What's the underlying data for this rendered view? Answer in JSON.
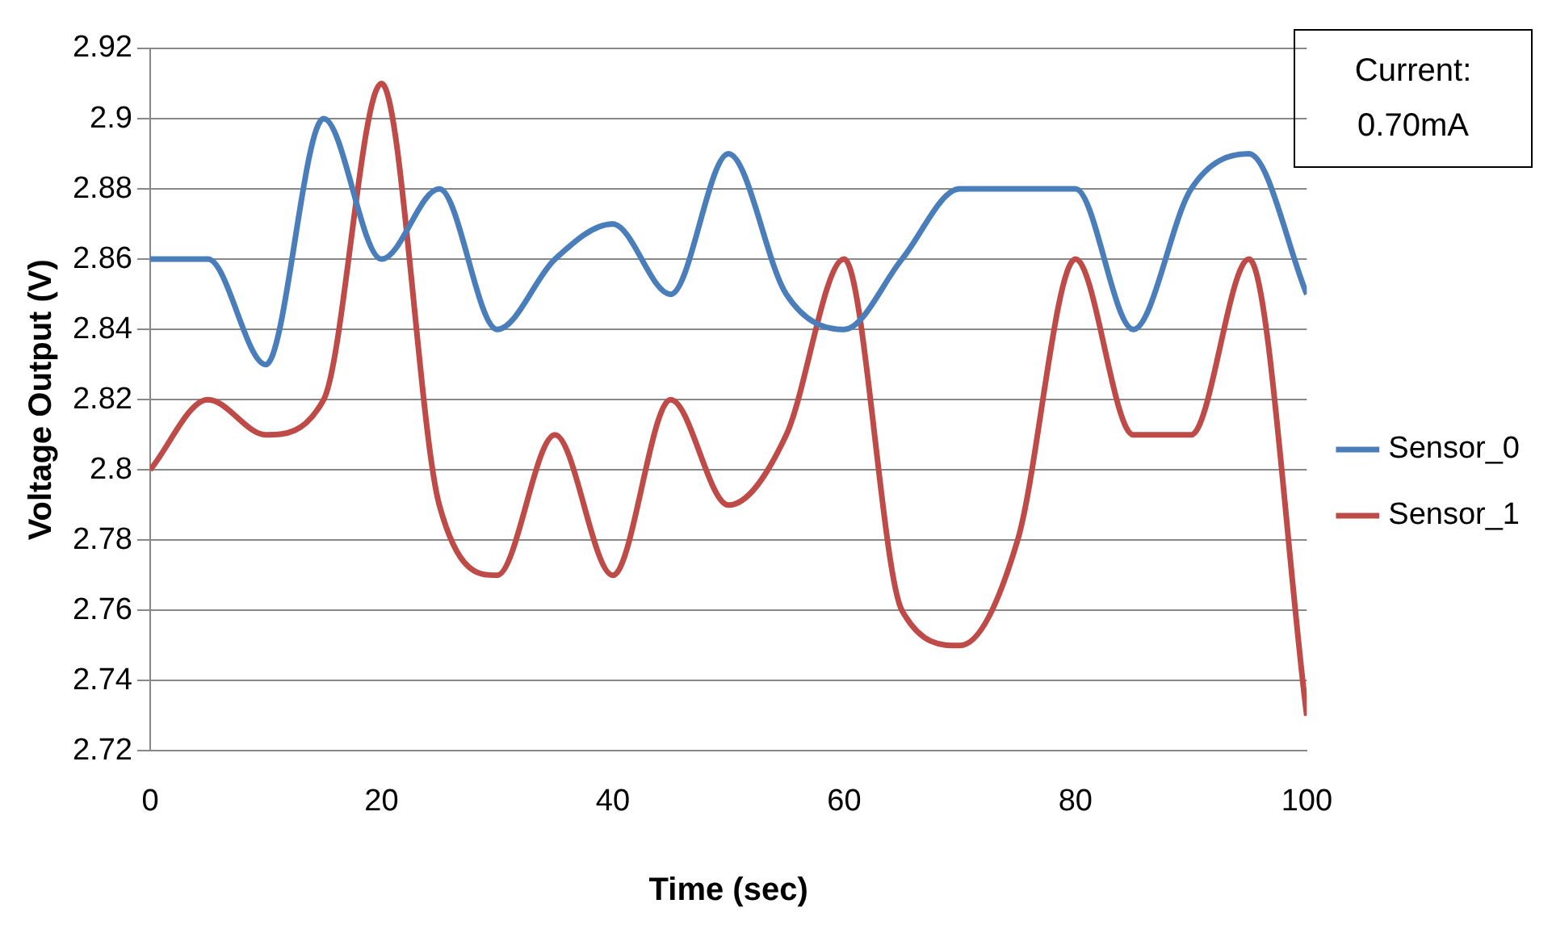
{
  "chart_data": {
    "type": "line",
    "xlabel": "Time (sec)",
    "ylabel": "Voltage Output (V)",
    "annotations": [
      "Current:\n0.70mA"
    ],
    "x": [
      0,
      5,
      10,
      15,
      20,
      25,
      30,
      35,
      40,
      45,
      50,
      55,
      60,
      65,
      70,
      75,
      80,
      85,
      90,
      95,
      100
    ],
    "series": [
      {
        "name": "Sensor_0",
        "color": "#4a7ebb",
        "values": [
          2.86,
          2.86,
          2.83,
          2.9,
          2.86,
          2.88,
          2.84,
          2.86,
          2.87,
          2.85,
          2.89,
          2.85,
          2.84,
          2.86,
          2.88,
          2.88,
          2.88,
          2.84,
          2.88,
          2.89,
          2.85
        ]
      },
      {
        "name": "Sensor_1",
        "color": "#be4b48",
        "values": [
          2.8,
          2.82,
          2.81,
          2.82,
          2.91,
          2.79,
          2.77,
          2.81,
          2.77,
          2.82,
          2.79,
          2.81,
          2.86,
          2.76,
          2.75,
          2.78,
          2.86,
          2.81,
          2.81,
          2.86,
          2.73
        ]
      }
    ],
    "xlim": [
      0,
      100
    ],
    "xticks": [
      0,
      20,
      40,
      60,
      80,
      100
    ],
    "ylim": [
      2.72,
      2.92
    ],
    "yticks": [
      {
        "value": 2.72,
        "label": "2.72"
      },
      {
        "value": 2.74,
        "label": "2.74"
      },
      {
        "value": 2.76,
        "label": "2.76"
      },
      {
        "value": 2.78,
        "label": "2.78"
      },
      {
        "value": 2.8,
        "label": "2.8"
      },
      {
        "value": 2.82,
        "label": "2.82"
      },
      {
        "value": 2.84,
        "label": "2.84"
      },
      {
        "value": 2.86,
        "label": "2.86"
      },
      {
        "value": 2.88,
        "label": "2.88"
      },
      {
        "value": 2.9,
        "label": "2.9"
      },
      {
        "value": 2.92,
        "label": "2.92"
      }
    ],
    "grid": "y",
    "legend": "right",
    "marker": "none",
    "line_style": "solid"
  }
}
